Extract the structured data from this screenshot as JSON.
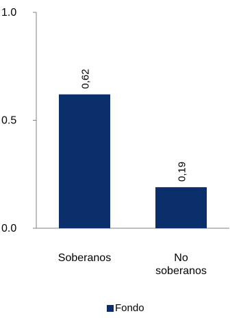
{
  "chart_data": {
    "type": "bar",
    "categories": [
      "Soberanos",
      "No soberanos"
    ],
    "category_label_lines": [
      [
        "Soberanos"
      ],
      [
        "No",
        "soberanos"
      ]
    ],
    "series": [
      {
        "name": "Fondo",
        "values": [
          0.62,
          0.19
        ],
        "color": "#0B2F6B"
      }
    ],
    "data_labels": [
      "0,62",
      "0,19"
    ],
    "ylim": [
      0.0,
      1.0
    ],
    "yticks": [
      0.0,
      0.5,
      1.0
    ],
    "ytick_labels": [
      "0.0",
      "0.5",
      "1.0"
    ],
    "grid": false,
    "legend": {
      "position": "bottom-center"
    }
  }
}
